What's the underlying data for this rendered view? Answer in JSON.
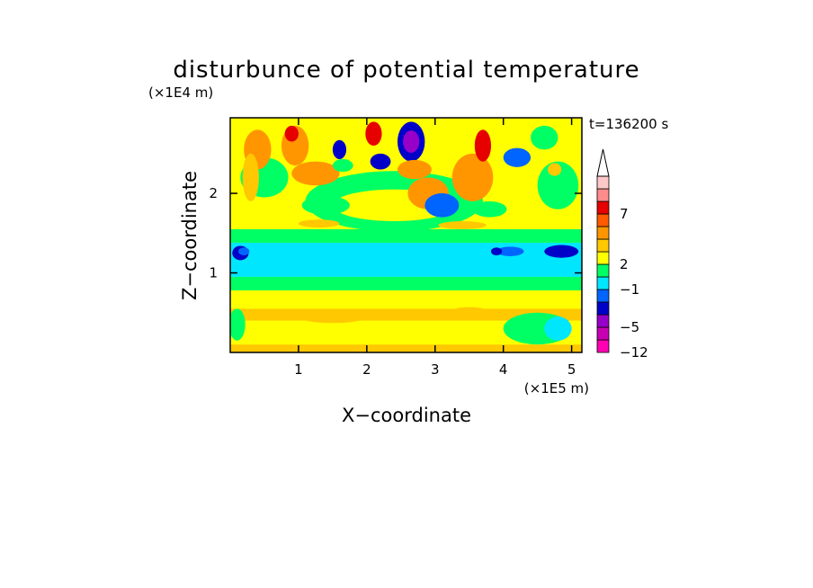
{
  "chart_data": {
    "type": "heatmap",
    "title": "disturbunce of potential temperature",
    "time_label": "t=136200 s",
    "xlabel": "X−coordinate",
    "ylabel": "Z−coordinate",
    "x_unit": "(×1E5 m)",
    "y_unit": "(×1E4 m)",
    "xlim": [
      0,
      5.15
    ],
    "ylim": [
      0,
      2.95
    ],
    "x_ticks": [
      {
        "value": 1,
        "label": "1"
      },
      {
        "value": 2,
        "label": "2"
      },
      {
        "value": 3,
        "label": "3"
      },
      {
        "value": 4,
        "label": "4"
      },
      {
        "value": 5,
        "label": "5"
      }
    ],
    "y_ticks": [
      {
        "value": 1,
        "label": "1"
      },
      {
        "value": 2,
        "label": "2"
      }
    ],
    "colorbar": {
      "colors": [
        "#ff00b4",
        "#c800b4",
        "#9600c8",
        "#0000c8",
        "#0064ff",
        "#00e6ff",
        "#00ff64",
        "#ffff00",
        "#ffc800",
        "#ff9600",
        "#ff5a00",
        "#e60000",
        "#ff8c8c",
        "#ffc8c8"
      ],
      "top_arrow_color": "#ffffff",
      "labels": [
        {
          "boundary": 0,
          "text": "−12"
        },
        {
          "boundary": 2,
          "text": "−5"
        },
        {
          "boundary": 5,
          "text": "−1"
        },
        {
          "boundary": 7,
          "text": "2"
        },
        {
          "boundary": 11,
          "text": "7"
        }
      ]
    },
    "field": {
      "background": "#ffff00",
      "bands": [
        {
          "z": [
            0.0,
            0.1
          ],
          "color": "#ffc800"
        },
        {
          "z": [
            0.1,
            0.4
          ],
          "color": "#ffff00"
        },
        {
          "z": [
            0.4,
            0.55
          ],
          "color": "#ffc800"
        },
        {
          "z": [
            0.55,
            0.78
          ],
          "color": "#ffff00"
        },
        {
          "z": [
            0.78,
            0.95
          ],
          "color": "#00ff64"
        },
        {
          "z": [
            0.95,
            1.38
          ],
          "color": "#00e6ff"
        },
        {
          "z": [
            1.38,
            1.55
          ],
          "color": "#00ff64"
        },
        {
          "z": [
            1.55,
            2.95
          ],
          "color": "#ffff00"
        }
      ],
      "blobs": [
        {
          "x": 0.15,
          "z": 1.25,
          "rx": 0.12,
          "rz": 0.09,
          "color": "#0000c8"
        },
        {
          "x": 0.2,
          "z": 1.27,
          "rx": 0.08,
          "rz": 0.05,
          "color": "#0064ff"
        },
        {
          "x": 4.85,
          "z": 1.27,
          "rx": 0.25,
          "rz": 0.08,
          "color": "#0000c8"
        },
        {
          "x": 4.1,
          "z": 1.27,
          "rx": 0.2,
          "rz": 0.06,
          "color": "#0064ff"
        },
        {
          "x": 3.9,
          "z": 1.27,
          "rx": 0.08,
          "rz": 0.05,
          "color": "#0000c8"
        },
        {
          "x": 2.0,
          "z": 1.05,
          "rx": 1.6,
          "rz": 0.06,
          "color": "#00e6ff"
        },
        {
          "x": 2.4,
          "z": 1.9,
          "rx": 1.3,
          "rz": 0.38,
          "color": "#00ff64"
        },
        {
          "x": 2.4,
          "z": 1.85,
          "rx": 0.9,
          "rz": 0.2,
          "color": "#ffff00"
        },
        {
          "x": 1.3,
          "z": 1.62,
          "rx": 0.3,
          "rz": 0.05,
          "color": "#ffc800"
        },
        {
          "x": 3.4,
          "z": 1.6,
          "rx": 0.35,
          "rz": 0.05,
          "color": "#ffc800"
        },
        {
          "x": 0.5,
          "z": 2.2,
          "rx": 0.35,
          "rz": 0.25,
          "color": "#00ff64"
        },
        {
          "x": 0.4,
          "z": 2.55,
          "rx": 0.2,
          "rz": 0.25,
          "color": "#ff9600"
        },
        {
          "x": 0.3,
          "z": 2.2,
          "rx": 0.12,
          "rz": 0.3,
          "color": "#ffc800"
        },
        {
          "x": 0.95,
          "z": 2.6,
          "rx": 0.2,
          "rz": 0.25,
          "color": "#ff9600"
        },
        {
          "x": 0.9,
          "z": 2.75,
          "rx": 0.1,
          "rz": 0.1,
          "color": "#e60000"
        },
        {
          "x": 1.25,
          "z": 2.25,
          "rx": 0.35,
          "rz": 0.15,
          "color": "#ff9600"
        },
        {
          "x": 1.6,
          "z": 2.55,
          "rx": 0.1,
          "rz": 0.12,
          "color": "#0000c8"
        },
        {
          "x": 1.65,
          "z": 2.35,
          "rx": 0.15,
          "rz": 0.08,
          "color": "#00ff64"
        },
        {
          "x": 2.1,
          "z": 2.75,
          "rx": 0.12,
          "rz": 0.15,
          "color": "#e60000"
        },
        {
          "x": 2.2,
          "z": 2.4,
          "rx": 0.15,
          "rz": 0.1,
          "color": "#0000c8"
        },
        {
          "x": 2.65,
          "z": 2.65,
          "rx": 0.2,
          "rz": 0.25,
          "color": "#0000c8"
        },
        {
          "x": 2.65,
          "z": 2.65,
          "rx": 0.12,
          "rz": 0.14,
          "color": "#9600c8"
        },
        {
          "x": 2.7,
          "z": 2.3,
          "rx": 0.25,
          "rz": 0.12,
          "color": "#ff9600"
        },
        {
          "x": 2.9,
          "z": 2.0,
          "rx": 0.3,
          "rz": 0.2,
          "color": "#ff9600"
        },
        {
          "x": 3.1,
          "z": 1.85,
          "rx": 0.25,
          "rz": 0.15,
          "color": "#0064ff"
        },
        {
          "x": 3.55,
          "z": 2.2,
          "rx": 0.3,
          "rz": 0.3,
          "color": "#ff9600"
        },
        {
          "x": 3.7,
          "z": 2.6,
          "rx": 0.12,
          "rz": 0.2,
          "color": "#e60000"
        },
        {
          "x": 4.2,
          "z": 2.45,
          "rx": 0.2,
          "rz": 0.12,
          "color": "#0064ff"
        },
        {
          "x": 4.6,
          "z": 2.7,
          "rx": 0.2,
          "rz": 0.15,
          "color": "#00ff64"
        },
        {
          "x": 4.8,
          "z": 2.1,
          "rx": 0.3,
          "rz": 0.3,
          "color": "#00ff64"
        },
        {
          "x": 4.75,
          "z": 2.3,
          "rx": 0.1,
          "rz": 0.08,
          "color": "#ffc800"
        },
        {
          "x": 1.4,
          "z": 1.85,
          "rx": 0.35,
          "rz": 0.12,
          "color": "#00ff64"
        },
        {
          "x": 3.8,
          "z": 1.8,
          "rx": 0.25,
          "rz": 0.1,
          "color": "#00ff64"
        },
        {
          "x": 1.5,
          "z": 0.45,
          "rx": 0.5,
          "rz": 0.08,
          "color": "#ffc800"
        },
        {
          "x": 3.5,
          "z": 0.5,
          "rx": 0.3,
          "rz": 0.07,
          "color": "#ffc800"
        },
        {
          "x": 4.5,
          "z": 0.3,
          "rx": 0.5,
          "rz": 0.2,
          "color": "#00ff64"
        },
        {
          "x": 4.8,
          "z": 0.3,
          "rx": 0.2,
          "rz": 0.15,
          "color": "#00e6ff"
        },
        {
          "x": 0.1,
          "z": 0.35,
          "rx": 0.12,
          "rz": 0.2,
          "color": "#00ff64"
        }
      ]
    }
  }
}
